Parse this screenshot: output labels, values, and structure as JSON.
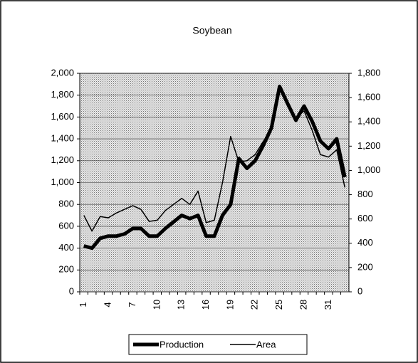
{
  "chart_data": {
    "type": "line",
    "title": "Soybean",
    "categories": [
      1,
      null,
      null,
      4,
      null,
      null,
      7,
      null,
      null,
      10,
      null,
      null,
      13,
      null,
      null,
      16,
      null,
      null,
      19,
      null,
      null,
      22,
      null,
      null,
      25,
      null,
      null,
      28,
      null,
      null,
      31,
      null,
      null
    ],
    "series": [
      {
        "name": "Production",
        "color": "#000000",
        "axis": "y",
        "values": [
          420,
          400,
          490,
          510,
          510,
          530,
          580,
          580,
          510,
          510,
          580,
          640,
          700,
          670,
          700,
          510,
          510,
          700,
          800,
          1220,
          1130,
          1200,
          1340,
          1500,
          1880,
          1720,
          1570,
          1700,
          1560,
          1380,
          1310,
          1400,
          1050
        ]
      },
      {
        "name": "Area",
        "color": "#000000",
        "axis": "y2",
        "values": [
          630,
          500,
          620,
          610,
          650,
          680,
          710,
          680,
          580,
          590,
          670,
          720,
          770,
          720,
          830,
          570,
          590,
          900,
          1280,
          1070,
          1080,
          1130,
          1240,
          1330,
          1670,
          1540,
          1430,
          1490,
          1330,
          1130,
          1110,
          1170,
          860
        ]
      }
    ],
    "ylim": [
      0,
      2000
    ],
    "yticks": [
      0,
      200,
      400,
      600,
      800,
      {
        "value": 1000,
        "label": "1,000"
      },
      {
        "value": 1200,
        "label": "1,200"
      },
      {
        "value": 1400,
        "label": "1,400"
      },
      {
        "value": 1600,
        "label": "1,600"
      },
      {
        "value": 1800,
        "label": "1,800"
      },
      {
        "value": 2000,
        "label": "2,000"
      }
    ],
    "y2lim": [
      0,
      1800
    ],
    "y2ticks": [
      0,
      200,
      400,
      600,
      800,
      {
        "value": 1000,
        "label": "1,000"
      },
      {
        "value": 1200,
        "label": "1,200"
      },
      {
        "value": 1400,
        "label": "1,400"
      },
      {
        "value": 1600,
        "label": "1,600"
      },
      {
        "value": 1800,
        "label": "1,800"
      }
    ],
    "grid": true,
    "legend": "bottom"
  }
}
